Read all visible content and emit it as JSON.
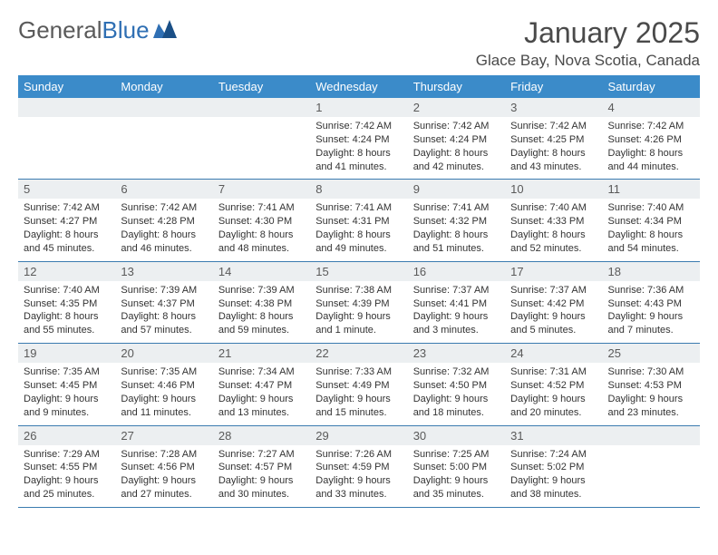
{
  "brand": {
    "part1": "General",
    "part2": "Blue"
  },
  "title": "January 2025",
  "location": "Glace Bay, Nova Scotia, Canada",
  "colors": {
    "header_bg": "#3b8bc9",
    "header_fg": "#ffffff",
    "daynum_bg": "#eceff1",
    "rule": "#3b7bb0",
    "title_color": "#4a4a4a",
    "logo_gray": "#5a5a5a",
    "logo_blue": "#2f6fb3",
    "text": "#333333",
    "background": "#ffffff"
  },
  "typography": {
    "title_fontsize": 32,
    "location_fontsize": 17,
    "weekday_fontsize": 13,
    "daynum_fontsize": 13,
    "body_fontsize": 11
  },
  "calendar": {
    "weekdays": [
      "Sunday",
      "Monday",
      "Tuesday",
      "Wednesday",
      "Thursday",
      "Friday",
      "Saturday"
    ],
    "first_weekday_index": 3,
    "weeks": [
      [
        null,
        null,
        null,
        {
          "n": "1",
          "sunrise": "7:42 AM",
          "sunset": "4:24 PM",
          "day_h": "8",
          "day_m": "41"
        },
        {
          "n": "2",
          "sunrise": "7:42 AM",
          "sunset": "4:24 PM",
          "day_h": "8",
          "day_m": "42"
        },
        {
          "n": "3",
          "sunrise": "7:42 AM",
          "sunset": "4:25 PM",
          "day_h": "8",
          "day_m": "43"
        },
        {
          "n": "4",
          "sunrise": "7:42 AM",
          "sunset": "4:26 PM",
          "day_h": "8",
          "day_m": "44"
        }
      ],
      [
        {
          "n": "5",
          "sunrise": "7:42 AM",
          "sunset": "4:27 PM",
          "day_h": "8",
          "day_m": "45"
        },
        {
          "n": "6",
          "sunrise": "7:42 AM",
          "sunset": "4:28 PM",
          "day_h": "8",
          "day_m": "46"
        },
        {
          "n": "7",
          "sunrise": "7:41 AM",
          "sunset": "4:30 PM",
          "day_h": "8",
          "day_m": "48"
        },
        {
          "n": "8",
          "sunrise": "7:41 AM",
          "sunset": "4:31 PM",
          "day_h": "8",
          "day_m": "49"
        },
        {
          "n": "9",
          "sunrise": "7:41 AM",
          "sunset": "4:32 PM",
          "day_h": "8",
          "day_m": "51"
        },
        {
          "n": "10",
          "sunrise": "7:40 AM",
          "sunset": "4:33 PM",
          "day_h": "8",
          "day_m": "52"
        },
        {
          "n": "11",
          "sunrise": "7:40 AM",
          "sunset": "4:34 PM",
          "day_h": "8",
          "day_m": "54"
        }
      ],
      [
        {
          "n": "12",
          "sunrise": "7:40 AM",
          "sunset": "4:35 PM",
          "day_h": "8",
          "day_m": "55"
        },
        {
          "n": "13",
          "sunrise": "7:39 AM",
          "sunset": "4:37 PM",
          "day_h": "8",
          "day_m": "57"
        },
        {
          "n": "14",
          "sunrise": "7:39 AM",
          "sunset": "4:38 PM",
          "day_h": "8",
          "day_m": "59"
        },
        {
          "n": "15",
          "sunrise": "7:38 AM",
          "sunset": "4:39 PM",
          "day_h": "9",
          "day_m": "1"
        },
        {
          "n": "16",
          "sunrise": "7:37 AM",
          "sunset": "4:41 PM",
          "day_h": "9",
          "day_m": "3"
        },
        {
          "n": "17",
          "sunrise": "7:37 AM",
          "sunset": "4:42 PM",
          "day_h": "9",
          "day_m": "5"
        },
        {
          "n": "18",
          "sunrise": "7:36 AM",
          "sunset": "4:43 PM",
          "day_h": "9",
          "day_m": "7"
        }
      ],
      [
        {
          "n": "19",
          "sunrise": "7:35 AM",
          "sunset": "4:45 PM",
          "day_h": "9",
          "day_m": "9"
        },
        {
          "n": "20",
          "sunrise": "7:35 AM",
          "sunset": "4:46 PM",
          "day_h": "9",
          "day_m": "11"
        },
        {
          "n": "21",
          "sunrise": "7:34 AM",
          "sunset": "4:47 PM",
          "day_h": "9",
          "day_m": "13"
        },
        {
          "n": "22",
          "sunrise": "7:33 AM",
          "sunset": "4:49 PM",
          "day_h": "9",
          "day_m": "15"
        },
        {
          "n": "23",
          "sunrise": "7:32 AM",
          "sunset": "4:50 PM",
          "day_h": "9",
          "day_m": "18"
        },
        {
          "n": "24",
          "sunrise": "7:31 AM",
          "sunset": "4:52 PM",
          "day_h": "9",
          "day_m": "20"
        },
        {
          "n": "25",
          "sunrise": "7:30 AM",
          "sunset": "4:53 PM",
          "day_h": "9",
          "day_m": "23"
        }
      ],
      [
        {
          "n": "26",
          "sunrise": "7:29 AM",
          "sunset": "4:55 PM",
          "day_h": "9",
          "day_m": "25"
        },
        {
          "n": "27",
          "sunrise": "7:28 AM",
          "sunset": "4:56 PM",
          "day_h": "9",
          "day_m": "27"
        },
        {
          "n": "28",
          "sunrise": "7:27 AM",
          "sunset": "4:57 PM",
          "day_h": "9",
          "day_m": "30"
        },
        {
          "n": "29",
          "sunrise": "7:26 AM",
          "sunset": "4:59 PM",
          "day_h": "9",
          "day_m": "33"
        },
        {
          "n": "30",
          "sunrise": "7:25 AM",
          "sunset": "5:00 PM",
          "day_h": "9",
          "day_m": "35"
        },
        {
          "n": "31",
          "sunrise": "7:24 AM",
          "sunset": "5:02 PM",
          "day_h": "9",
          "day_m": "38"
        },
        null
      ]
    ],
    "labels": {
      "sunrise": "Sunrise:",
      "sunset": "Sunset:",
      "daylight": "Daylight:",
      "hours": "hours",
      "hour": "hour",
      "and": "and",
      "minute": "minute",
      "minutes": "minutes"
    }
  }
}
